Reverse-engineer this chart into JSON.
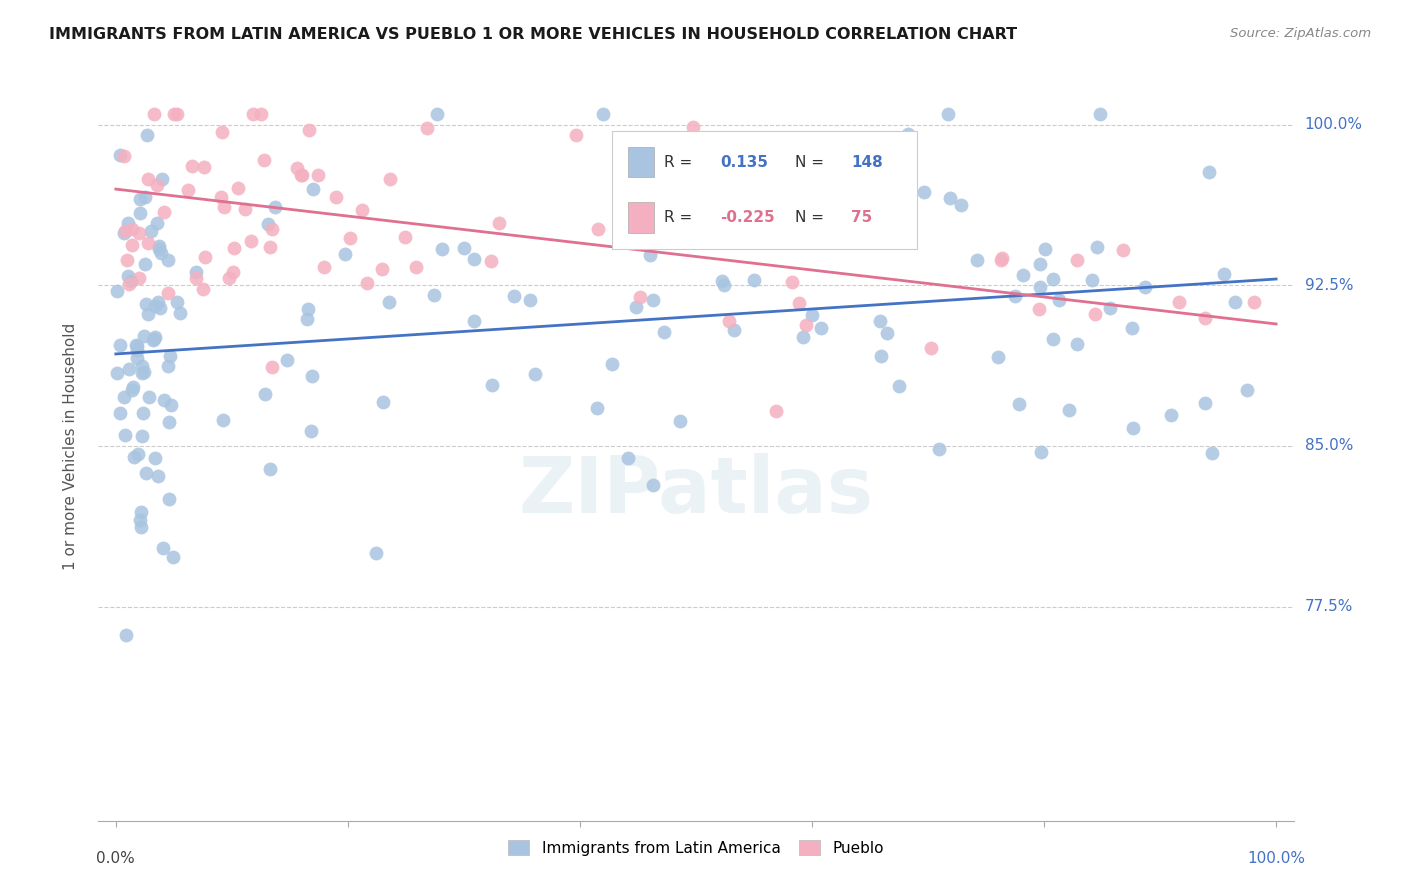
{
  "title": "IMMIGRANTS FROM LATIN AMERICA VS PUEBLO 1 OR MORE VEHICLES IN HOUSEHOLD CORRELATION CHART",
  "source": "Source: ZipAtlas.com",
  "ylabel": "1 or more Vehicles in Household",
  "ytick_positions": [
    0.775,
    0.85,
    0.925,
    1.0
  ],
  "ytick_labels": [
    "77.5%",
    "85.0%",
    "92.5%",
    "100.0%"
  ],
  "ymin": 0.675,
  "ymax": 1.025,
  "xmin": -0.015,
  "xmax": 1.015,
  "blue_R": 0.135,
  "blue_N": 148,
  "pink_R": -0.225,
  "pink_N": 75,
  "blue_color": "#a8c4e0",
  "pink_color": "#f4b0c0",
  "blue_line_color": "#4472c4",
  "pink_line_color": "#e07090",
  "legend_label_blue": "Immigrants from Latin America",
  "legend_label_pink": "Pueblo",
  "watermark": "ZIPatlas",
  "blue_line_start_y": 0.893,
  "blue_line_end_y": 0.928,
  "pink_line_start_y": 0.97,
  "pink_line_end_y": 0.907
}
